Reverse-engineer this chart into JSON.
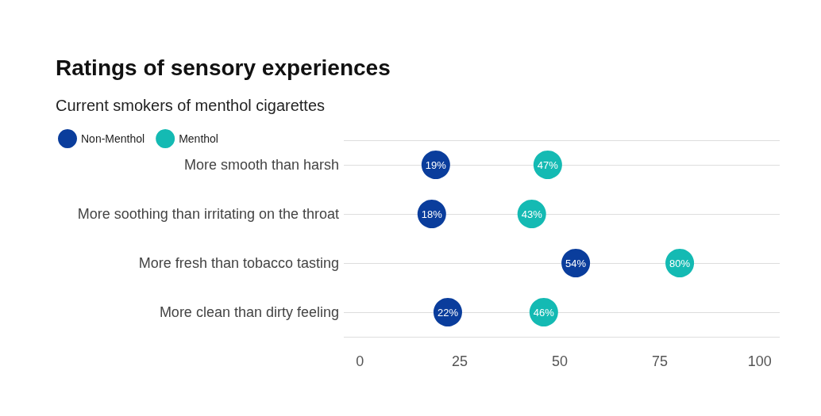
{
  "chart_data": {
    "type": "scatter",
    "orientation": "horizontal",
    "title": "Ratings of sensory experiences",
    "subtitle": "Current smokers of menthol cigarettes",
    "categories": [
      "More smooth than harsh",
      "More soothing than irritating on the throat",
      "More fresh than tobacco tasting",
      "More clean than dirty feeling"
    ],
    "series": [
      {
        "name": "Non-Menthol",
        "color": "#0a3d9c",
        "values": [
          19,
          18,
          54,
          22
        ],
        "value_labels": [
          "19%",
          "18%",
          "54%",
          "22%"
        ]
      },
      {
        "name": "Menthol",
        "color": "#14bab3",
        "values": [
          47,
          43,
          80,
          46
        ],
        "value_labels": [
          "47%",
          "43%",
          "80%",
          "46%"
        ]
      }
    ],
    "xlim": [
      -4,
      105
    ],
    "xticks": [
      0,
      25,
      50,
      75,
      100
    ],
    "grid": "y",
    "legend": "top left",
    "marker": "circle"
  }
}
